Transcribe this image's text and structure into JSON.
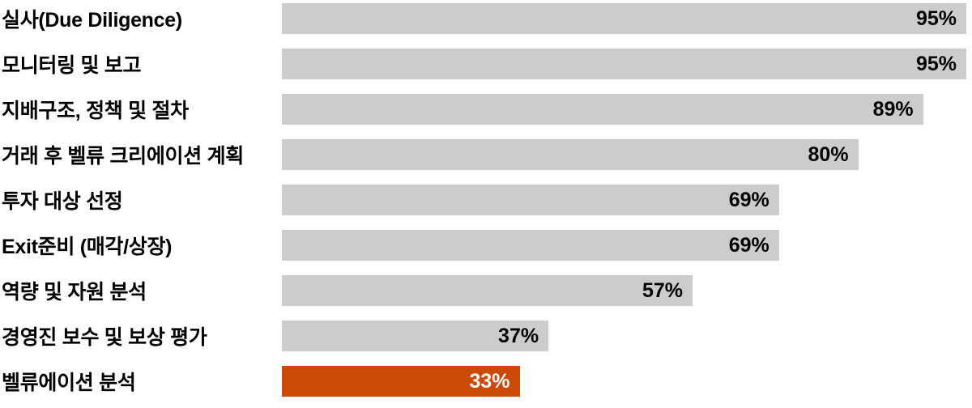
{
  "chart_data": {
    "type": "bar",
    "orientation": "horizontal",
    "categories": [
      "실사(Due Diligence)",
      "모니터링 및 보고",
      "지배구조, 정책 및 절차",
      "거래 후 벨류 크리에이션 계획",
      "투자 대상 선정",
      "Exit준비 (매각/상장)",
      "역량 및 자원 분석",
      "경영진 보수 및 보상 평가",
      "벨류에이션 분석"
    ],
    "values": [
      95,
      95,
      89,
      80,
      69,
      69,
      57,
      37,
      33
    ],
    "value_labels": [
      "95%",
      "95%",
      "89%",
      "80%",
      "69%",
      "69%",
      "57%",
      "37%",
      "33%"
    ],
    "value_suffix": "%",
    "highlight_index": 8,
    "colors": {
      "bar": "#CCCCCC",
      "highlight_bar": "#CB4A08",
      "label_text": "#000000",
      "value_text": "#000000",
      "highlight_value_text": "#FFFFFF",
      "background": "#FFFFFF"
    },
    "axis_max_value": 95,
    "grid": false,
    "legend": false,
    "value_labels_position": "inside-end"
  }
}
